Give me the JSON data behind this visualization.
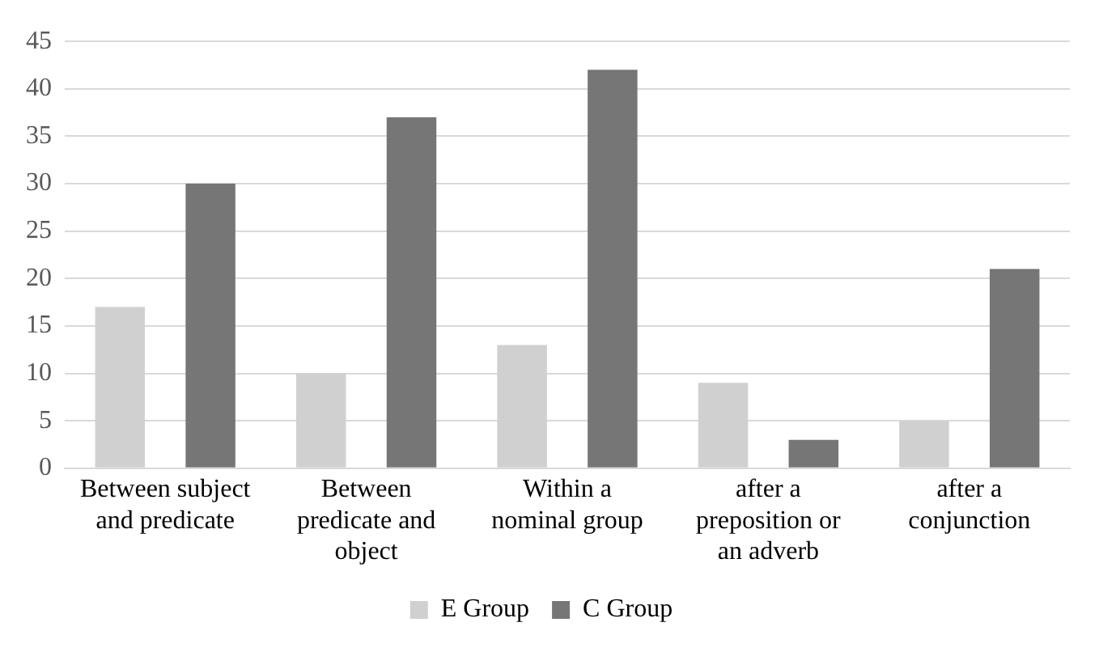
{
  "chart_data": {
    "type": "bar",
    "categories": [
      "Between subject and predicate",
      "Between predicate and object",
      "Within a nominal group",
      "after a preposition or an adverb",
      "after a conjunction"
    ],
    "series": [
      {
        "name": "E Group",
        "color": "#d0d0d0",
        "values": [
          17,
          10,
          13,
          9,
          5
        ]
      },
      {
        "name": "C Group",
        "color": "#767676",
        "values": [
          30,
          37,
          42,
          3,
          21
        ]
      }
    ],
    "ylim": [
      0,
      45
    ],
    "yticks": [
      0,
      5,
      10,
      15,
      20,
      25,
      30,
      35,
      40,
      45
    ],
    "grid": "y",
    "legend": "bottom"
  }
}
